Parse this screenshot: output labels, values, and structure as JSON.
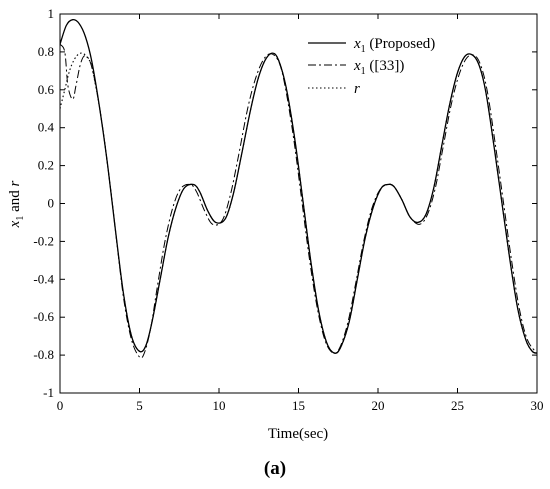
{
  "chart_data": {
    "type": "line",
    "title": "",
    "xlabel": "Time(sec)",
    "ylabel_parts": [
      "x",
      "1",
      " and ",
      "r"
    ],
    "xlim": [
      0,
      30
    ],
    "ylim": [
      -1,
      1
    ],
    "xticks": [
      0,
      5,
      10,
      15,
      20,
      25,
      30
    ],
    "yticks": [
      -1,
      -0.8,
      -0.6,
      -0.4,
      -0.2,
      0,
      0.2,
      0.4,
      0.6,
      0.8,
      1
    ],
    "xtick_labels": [
      "0",
      "5",
      "10",
      "15",
      "20",
      "25",
      "30"
    ],
    "ytick_labels": [
      "-1",
      "-0.8",
      "-0.6",
      "-0.4",
      "-0.2",
      "0",
      "0.2",
      "0.4",
      "0.6",
      "0.8",
      "1"
    ],
    "grid": false,
    "legend_position": "top-right",
    "series": [
      {
        "legend_parts": [
          "x",
          "1",
          " (Proposed)"
        ],
        "style": "solid",
        "x": [
          0,
          0.4,
          0.8,
          1.2,
          1.6,
          2.0,
          2.5,
          3.0,
          3.5,
          4.0,
          4.5,
          5.0,
          5.4,
          5.8,
          6.3,
          6.8,
          7.3,
          7.8,
          8.4,
          8.8,
          9.3,
          9.8,
          10.4,
          10.9,
          11.4,
          12.0,
          12.5,
          13.0,
          13.5,
          13.9,
          14.3,
          14.8,
          15.3,
          15.8,
          16.3,
          16.8,
          17.3,
          17.7,
          18.2,
          18.7,
          19.2,
          19.7,
          20.2,
          20.6,
          21.0,
          21.5,
          22.0,
          22.5,
          23.0,
          23.5,
          24.0,
          24.5,
          25.0,
          25.5,
          26.0,
          26.4,
          26.8,
          27.3,
          27.8,
          28.3,
          28.8,
          29.3,
          29.7,
          30.0
        ],
        "y": [
          0.84,
          0.94,
          0.97,
          0.95,
          0.88,
          0.75,
          0.5,
          0.2,
          -0.15,
          -0.48,
          -0.7,
          -0.78,
          -0.75,
          -0.62,
          -0.4,
          -0.18,
          -0.02,
          0.08,
          0.1,
          0.06,
          -0.04,
          -0.1,
          -0.08,
          0.05,
          0.25,
          0.5,
          0.67,
          0.77,
          0.79,
          0.72,
          0.58,
          0.32,
          0.0,
          -0.32,
          -0.58,
          -0.74,
          -0.79,
          -0.75,
          -0.62,
          -0.4,
          -0.18,
          -0.02,
          0.08,
          0.1,
          0.09,
          0.02,
          -0.07,
          -0.1,
          -0.06,
          0.08,
          0.3,
          0.52,
          0.69,
          0.78,
          0.78,
          0.72,
          0.58,
          0.3,
          0.0,
          -0.3,
          -0.56,
          -0.72,
          -0.78,
          -0.79
        ]
      },
      {
        "legend_parts": [
          "x",
          "1",
          " ([33])"
        ],
        "style": "dashdot",
        "x": [
          0,
          0.3,
          0.5,
          0.8,
          1.0,
          1.3,
          1.6,
          2.0,
          2.5,
          3.0,
          3.5,
          4.0,
          4.5,
          5.0,
          5.3,
          5.7,
          6.1,
          6.6,
          7.1,
          7.6,
          8.2,
          8.6,
          9.1,
          9.6,
          10.2,
          10.7,
          11.2,
          11.8,
          12.3,
          12.8,
          13.3,
          13.8,
          14.2,
          14.7,
          15.2,
          15.7,
          16.2,
          16.7,
          17.2,
          17.6,
          18.1,
          18.6,
          19.1,
          19.6,
          20.1,
          20.6,
          21.0,
          21.5,
          22.0,
          22.6,
          23.1,
          23.6,
          24.1,
          24.6,
          25.1,
          25.6,
          26.1,
          26.5,
          26.9,
          27.4,
          27.9,
          28.4,
          28.9,
          29.4,
          30.0
        ],
        "y": [
          0.84,
          0.8,
          0.62,
          0.55,
          0.62,
          0.74,
          0.78,
          0.72,
          0.5,
          0.2,
          -0.15,
          -0.5,
          -0.72,
          -0.81,
          -0.79,
          -0.66,
          -0.45,
          -0.2,
          -0.02,
          0.08,
          0.1,
          0.06,
          -0.04,
          -0.11,
          -0.09,
          0.04,
          0.24,
          0.5,
          0.66,
          0.76,
          0.79,
          0.74,
          0.6,
          0.34,
          0.02,
          -0.3,
          -0.56,
          -0.73,
          -0.79,
          -0.76,
          -0.63,
          -0.42,
          -0.2,
          -0.03,
          0.07,
          0.1,
          0.09,
          0.02,
          -0.07,
          -0.11,
          -0.06,
          0.08,
          0.3,
          0.52,
          0.68,
          0.77,
          0.78,
          0.72,
          0.58,
          0.3,
          0.0,
          -0.3,
          -0.56,
          -0.72,
          -0.79
        ]
      },
      {
        "legend_parts": [
          "r"
        ],
        "style": "dotted",
        "x": [
          0,
          0.3,
          0.6,
          0.9,
          1.2,
          1.5,
          1.8,
          2.0,
          2.5,
          3.0,
          3.5,
          4.0,
          4.5,
          5.0,
          5.4,
          5.8,
          6.3,
          6.8,
          7.3,
          7.8,
          8.4,
          8.8,
          9.3,
          9.8,
          10.4,
          10.9,
          11.4,
          12.0,
          12.5,
          13.0,
          13.5,
          13.9,
          14.3,
          14.8,
          15.3,
          15.8,
          16.3,
          16.8,
          17.3,
          17.7,
          18.2,
          18.7,
          19.2,
          19.7,
          20.2,
          20.6,
          21.0,
          21.5,
          22.0,
          22.5,
          23.0,
          23.5,
          24.0,
          24.5,
          25.0,
          25.5,
          26.0,
          26.4,
          26.8,
          27.3,
          27.8,
          28.3,
          28.8,
          29.3,
          29.7,
          30.0
        ],
        "y": [
          0.5,
          0.6,
          0.7,
          0.76,
          0.79,
          0.79,
          0.76,
          0.72,
          0.5,
          0.2,
          -0.15,
          -0.48,
          -0.7,
          -0.78,
          -0.75,
          -0.62,
          -0.4,
          -0.18,
          -0.02,
          0.08,
          0.1,
          0.06,
          -0.04,
          -0.1,
          -0.08,
          0.05,
          0.25,
          0.5,
          0.67,
          0.77,
          0.79,
          0.72,
          0.58,
          0.32,
          0.0,
          -0.32,
          -0.58,
          -0.74,
          -0.79,
          -0.75,
          -0.62,
          -0.4,
          -0.18,
          -0.02,
          0.08,
          0.1,
          0.09,
          0.02,
          -0.07,
          -0.1,
          -0.06,
          0.08,
          0.3,
          0.52,
          0.69,
          0.78,
          0.78,
          0.72,
          0.58,
          0.3,
          0.0,
          -0.3,
          -0.56,
          -0.72,
          -0.78,
          -0.79
        ]
      }
    ]
  },
  "caption": {
    "open": "(",
    "letter": "a",
    "close": ")"
  }
}
